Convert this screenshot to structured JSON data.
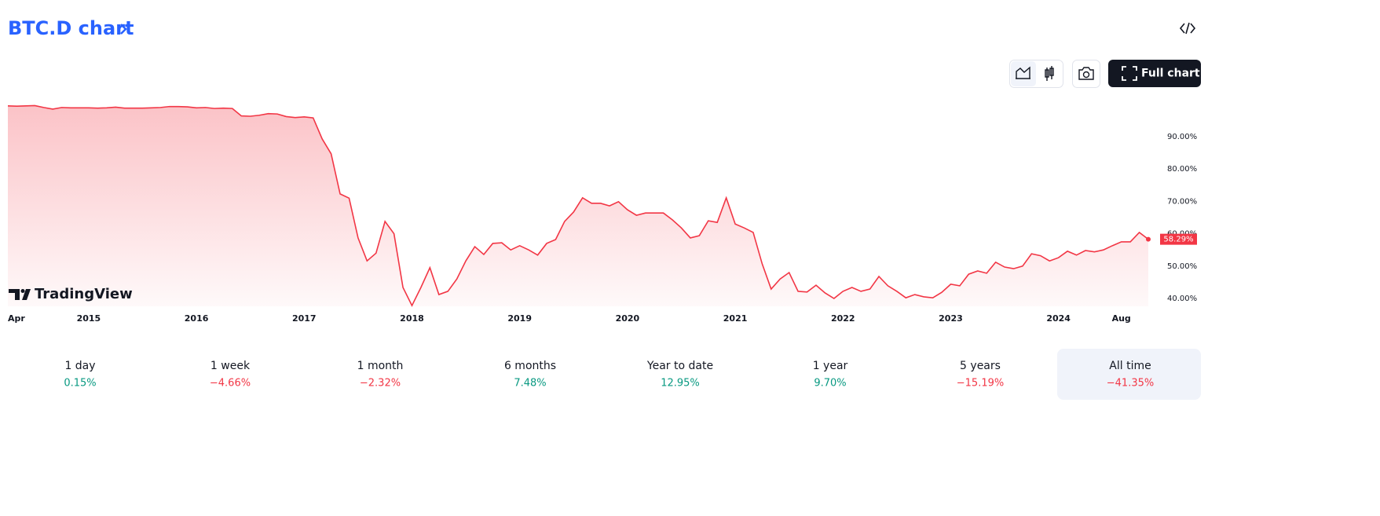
{
  "chart_data": {
    "type": "area",
    "title": "BTC.D chart",
    "color": "#f23645",
    "categories": [
      "Apr",
      null,
      null,
      null,
      null,
      null,
      null,
      null,
      null,
      "2015",
      null,
      null,
      null,
      null,
      null,
      null,
      null,
      null,
      null,
      null,
      null,
      "2016",
      null,
      null,
      null,
      null,
      null,
      null,
      null,
      null,
      null,
      null,
      null,
      "2017",
      null,
      null,
      null,
      null,
      null,
      null,
      null,
      null,
      null,
      null,
      null,
      "2018",
      null,
      null,
      null,
      null,
      null,
      null,
      null,
      null,
      null,
      null,
      null,
      "2019",
      null,
      null,
      null,
      null,
      null,
      null,
      null,
      null,
      null,
      null,
      null,
      "2020",
      null,
      null,
      null,
      null,
      null,
      null,
      null,
      null,
      null,
      null,
      null,
      "2021",
      null,
      null,
      null,
      null,
      null,
      null,
      null,
      null,
      null,
      null,
      null,
      "2022",
      null,
      null,
      null,
      null,
      null,
      null,
      null,
      null,
      null,
      null,
      null,
      "2023",
      null,
      null,
      null,
      null,
      null,
      null,
      null,
      null,
      null,
      null,
      null,
      "2024",
      null,
      null,
      null,
      null,
      null,
      null,
      "Aug",
      null,
      null,
      null
    ],
    "values": [
      99.5,
      99.4,
      99.5,
      99.6,
      99.0,
      98.5,
      99.0,
      98.9,
      98.9,
      98.9,
      98.8,
      98.9,
      99.1,
      98.8,
      98.8,
      98.8,
      98.9,
      99.0,
      99.3,
      99.3,
      99.2,
      98.9,
      99.0,
      98.7,
      98.8,
      98.7,
      96.4,
      96.3,
      96.6,
      97.1,
      97.0,
      96.2,
      95.9,
      96.1,
      95.8,
      89.3,
      84.7,
      72.3,
      71.0,
      58.7,
      51.6,
      54.0,
      63.8,
      60.0,
      43.4,
      37.8,
      43.4,
      49.5,
      41.2,
      42.2,
      46.0,
      51.6,
      56.0,
      53.6,
      57.0,
      57.2,
      55.0,
      56.3,
      55.0,
      53.4,
      57.0,
      58.2,
      63.8,
      66.7,
      71.1,
      69.4,
      69.4,
      68.6,
      69.9,
      67.4,
      65.7,
      66.4,
      66.4,
      66.4,
      64.3,
      61.8,
      58.7,
      59.4,
      64.0,
      63.5,
      71.1,
      63.0,
      61.8,
      60.4,
      50.7,
      42.9,
      46.0,
      48.0,
      42.2,
      42.0,
      44.1,
      41.7,
      40.0,
      42.2,
      43.4,
      42.2,
      42.9,
      46.8,
      43.9,
      42.2,
      40.2,
      41.2,
      40.5,
      40.2,
      41.9,
      44.4,
      43.9,
      47.5,
      48.5,
      47.8,
      51.2,
      49.7,
      49.2,
      50.0,
      53.8,
      53.2,
      51.6,
      52.6,
      54.6,
      53.4,
      54.8,
      54.4,
      55.0,
      56.3,
      57.5,
      57.5,
      60.4,
      58.29
    ],
    "price_tag": {
      "value": 58.29,
      "label": "58.29%"
    },
    "ylim": [
      37.5,
      100.5
    ],
    "yticks": [
      {
        "value": 40,
        "label": "40.00%"
      },
      {
        "value": 50,
        "label": "50.00%"
      },
      {
        "value": 60,
        "label": "60.00%"
      },
      {
        "value": 70,
        "label": "70.00%"
      },
      {
        "value": 80,
        "label": "80.00%"
      },
      {
        "value": 90,
        "label": "90.00%"
      }
    ],
    "watermark": "TradingView",
    "button": "Full chart",
    "periods": [
      "1 day",
      "1 week",
      "1 month",
      "6 months",
      "Year to date",
      "1 year",
      "5 years",
      "All time"
    ],
    "changes": [
      0.15,
      -4.66,
      -2.32,
      7.48,
      12.95,
      9.7,
      -15.19,
      -41.35
    ],
    "value_labels": [
      "0.15%",
      "−4.66%",
      "−2.32%",
      "7.48%",
      "12.95%",
      "9.70%",
      "−15.19%",
      "−41.35%"
    ],
    "selected_period": 7
  }
}
